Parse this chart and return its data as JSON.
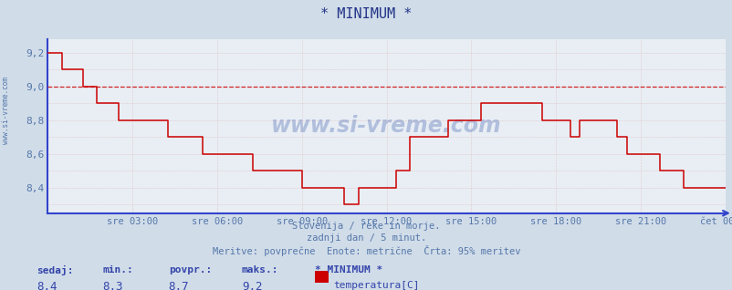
{
  "title": "* MINIMUM *",
  "bg_color": "#d0dce8",
  "plot_bg_color": "#e8eef4",
  "line_color": "#cc0000",
  "avg_line_color": "#cc0000",
  "avg_line_value": 9.0,
  "xlabel_color": "#5577aa",
  "ylabel_color": "#5577aa",
  "title_color": "#223388",
  "axis_color": "#3344cc",
  "text_color": "#5577aa",
  "ylim": [
    8.25,
    9.28
  ],
  "yticks": [
    8.4,
    8.6,
    8.8,
    9.0,
    9.2
  ],
  "subtitle1": "Slovenija / reke in morje.",
  "subtitle2": "zadnji dan / 5 minut.",
  "subtitle3": "Meritve: povprečne  Enote: metrične  Črta: 95% meritev",
  "watermark": "www.si-vreme.com",
  "bottom_label_row1": [
    "sedaj:",
    "min.:",
    "povpr.:",
    "maks.:",
    "* MINIMUM *"
  ],
  "bottom_label_row2": [
    "8,4",
    "8,3",
    "8,7",
    "9,2"
  ],
  "legend_label": "temperatura[C]",
  "legend_color": "#cc0000",
  "xtick_labels": [
    "sre 03:00",
    "sre 06:00",
    "sre 09:00",
    "sre 12:00",
    "sre 15:00",
    "sre 18:00",
    "sre 21:00",
    "čet 00:00"
  ],
  "step_t": [
    0,
    3,
    6,
    9,
    12,
    15,
    18,
    21,
    24,
    27,
    30,
    33,
    36,
    39,
    42,
    45,
    48,
    51,
    54,
    57,
    60,
    63,
    66,
    69,
    72,
    75,
    78,
    81,
    84,
    87,
    90,
    93,
    96,
    100,
    104,
    108,
    112,
    116,
    120,
    124,
    126,
    128,
    132,
    136,
    140,
    144,
    148,
    152,
    154,
    158,
    162,
    166,
    170,
    174,
    178,
    180,
    184,
    188,
    192,
    196,
    198,
    202,
    204,
    206,
    210,
    214,
    216,
    218,
    220,
    222,
    224,
    226,
    228,
    230,
    234,
    238,
    240,
    242,
    244,
    246,
    248,
    252,
    256,
    260,
    264,
    266,
    268,
    270,
    272,
    274,
    276,
    278,
    280,
    284,
    288
  ],
  "step_v": [
    9.2,
    9.2,
    9.1,
    9.1,
    9.1,
    9.0,
    9.0,
    8.9,
    8.9,
    8.9,
    8.8,
    8.8,
    8.8,
    8.8,
    8.8,
    8.8,
    8.8,
    8.7,
    8.7,
    8.7,
    8.7,
    8.7,
    8.6,
    8.6,
    8.6,
    8.6,
    8.6,
    8.6,
    8.6,
    8.5,
    8.5,
    8.5,
    8.5,
    8.5,
    8.5,
    8.4,
    8.4,
    8.4,
    8.4,
    8.4,
    8.3,
    8.3,
    8.4,
    8.4,
    8.4,
    8.4,
    8.5,
    8.5,
    8.7,
    8.7,
    8.7,
    8.7,
    8.8,
    8.8,
    8.8,
    8.8,
    8.9,
    8.9,
    8.9,
    8.9,
    8.9,
    8.9,
    8.9,
    8.9,
    8.8,
    8.8,
    8.8,
    8.8,
    8.8,
    8.7,
    8.7,
    8.8,
    8.8,
    8.8,
    8.8,
    8.8,
    8.8,
    8.7,
    8.7,
    8.6,
    8.6,
    8.6,
    8.6,
    8.5,
    8.5,
    8.5,
    8.5,
    8.4,
    8.4,
    8.4,
    8.4,
    8.4,
    8.4,
    8.4,
    8.4
  ]
}
